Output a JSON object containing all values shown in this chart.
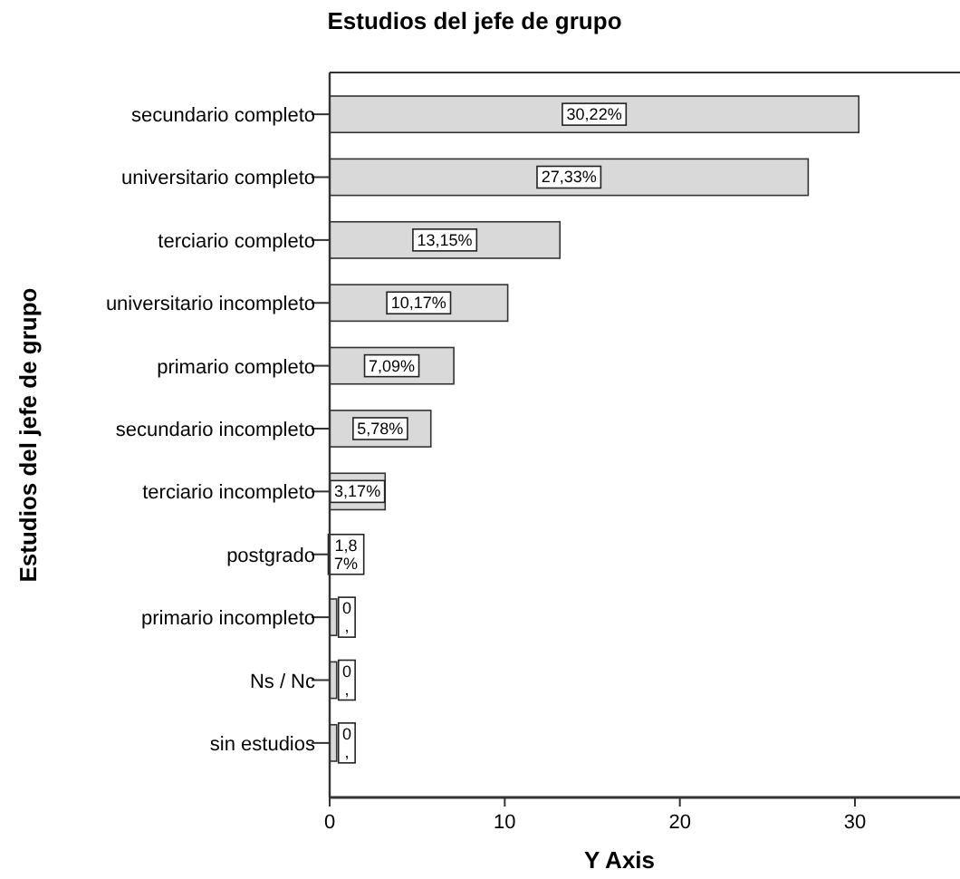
{
  "chart_data": {
    "type": "bar",
    "orientation": "horizontal",
    "title": "Estudios del jefe de grupo",
    "ylabel": "Estudios del jefe de grupo",
    "xlabel": "Y Axis",
    "categories": [
      "secundario completo",
      "universitario completo",
      "terciario completo",
      "universitario incompleto",
      "primario completo",
      "secundario incompleto",
      "terciario incompleto",
      "postgrado",
      "primario incompleto",
      "Ns / Nc",
      "sin estudios"
    ],
    "values": [
      30.22,
      27.33,
      13.15,
      10.17,
      7.09,
      5.78,
      3.17,
      1.87,
      0.4,
      0.4,
      0.4
    ],
    "value_labels": [
      "30,22%",
      "27,33%",
      "13,15%",
      "10,17%",
      "7,09%",
      "5,78%",
      "3,17%",
      "1,87%",
      "0,",
      "0,",
      "0,"
    ],
    "color": "#d9d9d9",
    "xlim": [
      0,
      36
    ],
    "xticks": [
      0,
      10,
      20,
      30
    ],
    "grid": false
  }
}
